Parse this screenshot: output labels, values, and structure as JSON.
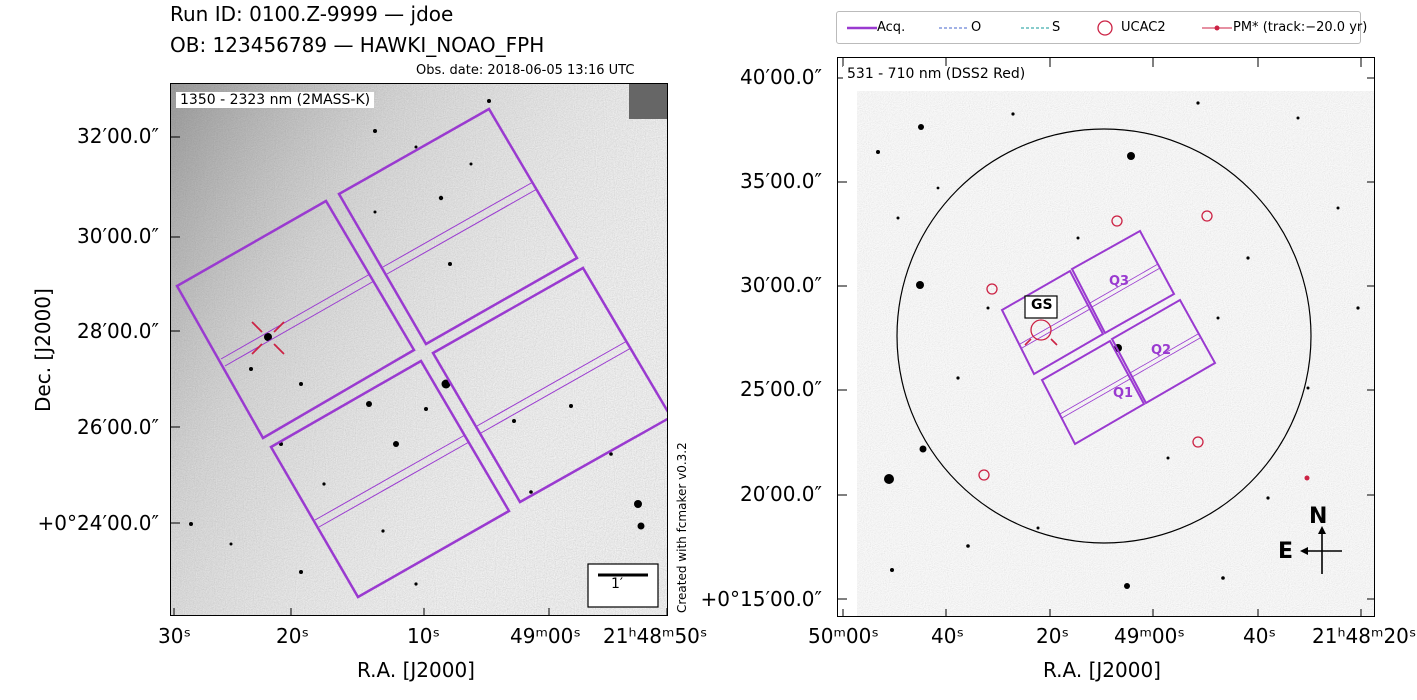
{
  "header": {
    "run_line": "Run ID: 0100.Z-9999 — jdoe",
    "ob_line": "OB: 123456789 — HAWKI_NOAO_FPH",
    "obs_date": "Obs. date: 2018-06-05 13:16 UTC"
  },
  "left_panel": {
    "band_label": "1350 - 2323 nm (2MASS-K)",
    "credit": "Created with fcmaker v0.3.2",
    "scale_label": "1′",
    "y_axis_title": "Dec. [J2000]",
    "x_axis_title": "R.A. [J2000]",
    "y_ticks": [
      "32′00.0″",
      "30′00.0″",
      "28′00.0″",
      "26′00.0″",
      "+0°24′00.0″"
    ],
    "x_ticks": [
      "30ˢ",
      "20ˢ",
      "10ˢ",
      "49ᵐ00ˢ",
      "21ʰ48ᵐ50ˢ"
    ]
  },
  "right_panel": {
    "band_label": "531 - 710 nm (DSS2 Red)",
    "y_axis_title": "",
    "x_axis_title": "R.A. [J2000]",
    "y_ticks": [
      "40′00.0″",
      "35′00.0″",
      "30′00.0″",
      "25′00.0″",
      "20′00.0″",
      "+0°15′00.0″"
    ],
    "x_ticks": [
      "50ᵐ00ˢ",
      "40ˢ",
      "20ˢ",
      "49ᵐ00ˢ",
      "40ˢ",
      "21ʰ48ᵐ20ˢ"
    ],
    "gs_label": "GS",
    "quadrants": [
      "Q1",
      "Q2",
      "Q3"
    ],
    "compass_north": "N",
    "compass_east": "E"
  },
  "legend": {
    "items": [
      {
        "label": "Acq.",
        "color": "#9a3ad0",
        "style": "solid"
      },
      {
        "label": "O",
        "color": "#4466cc",
        "style": "dashed"
      },
      {
        "label": "S",
        "color": "#119999",
        "style": "dashed"
      },
      {
        "label": "UCAC2",
        "color": "#cc2244",
        "style": "circle"
      },
      {
        "label": "PM* (track:−20.0 yr)",
        "color": "#cc2244",
        "style": "dot-line"
      }
    ]
  },
  "colors": {
    "accent": "#9a3ad0",
    "marker": "#cc2244"
  }
}
